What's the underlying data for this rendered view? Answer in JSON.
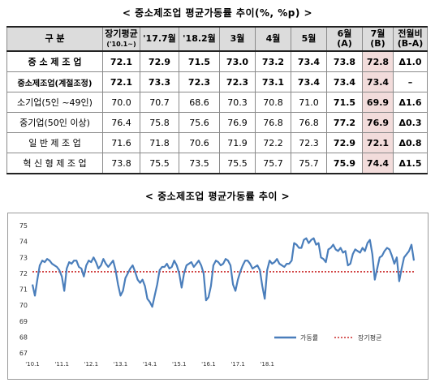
{
  "table_title": "< 중소제조업 평균가동률 추이(%, %p) >",
  "chart_title": "< 중소제조업 평균가동률 추이 >",
  "table": {
    "headers": [
      "구 분",
      "장기평균 ('10.1~)",
      "'17.7월",
      "'18.2월",
      "3월",
      "4월",
      "5월",
      "6월 (A)",
      "7월 (B)",
      "전월비 (B-A)"
    ],
    "header_lines": [
      [
        "구 분"
      ],
      [
        "장기평균",
        "('10.1~)"
      ],
      [
        "'17.7월"
      ],
      [
        "'18.2월"
      ],
      [
        "3월"
      ],
      [
        "4월"
      ],
      [
        "5월"
      ],
      [
        "6월",
        "(A)"
      ],
      [
        "7월",
        "(B)"
      ],
      [
        "전월비",
        "(B-A)"
      ]
    ],
    "rows": [
      {
        "label": "중 소 제 조 업",
        "values": [
          "72.1",
          "72.9",
          "71.5",
          "73.0",
          "73.2",
          "73.4",
          "73.8",
          "72.8",
          "Δ1.0"
        ]
      },
      {
        "label": "중소제조업(계절조정)",
        "values": [
          "72.1",
          "73.3",
          "72.3",
          "72.3",
          "73.1",
          "73.4",
          "73.4",
          "73.4",
          "–"
        ]
      },
      {
        "label": "소기업(5인 ~49인)",
        "values": [
          "70.0",
          "70.7",
          "68.6",
          "70.3",
          "70.8",
          "71.0",
          "71.5",
          "69.9",
          "Δ1.6"
        ]
      },
      {
        "label": "중기업(50인 이상)",
        "values": [
          "76.4",
          "75.8",
          "75.6",
          "76.9",
          "76.8",
          "76.8",
          "77.2",
          "76.9",
          "Δ0.3"
        ]
      },
      {
        "label": "일 반 제 조 업",
        "values": [
          "71.6",
          "71.8",
          "70.6",
          "71.9",
          "72.2",
          "72.3",
          "72.9",
          "72.1",
          "Δ0.8"
        ]
      },
      {
        "label": "혁 신 형 제 조 업",
        "values": [
          "73.8",
          "75.5",
          "73.5",
          "75.5",
          "75.7",
          "75.7",
          "75.9",
          "74.4",
          "Δ1.5"
        ]
      }
    ]
  },
  "chart_data": {
    "type": "line",
    "x_tick_labels": [
      "'10.1",
      "'11.1",
      "'12.1",
      "'13.1",
      "'14.1",
      "'15.1",
      "'16.1",
      "'17.1",
      "'18.1"
    ],
    "ylim": [
      67,
      75
    ],
    "y_ticks": [
      67,
      68,
      69,
      70,
      71,
      72,
      73,
      74,
      75
    ],
    "series": [
      {
        "name": "가동률",
        "color": "#4a7ebb",
        "values": [
          71.3,
          70.6,
          71.6,
          72.5,
          72.8,
          72.7,
          72.9,
          72.8,
          72.6,
          72.5,
          72.4,
          72.2,
          71.8,
          70.9,
          72.3,
          72.7,
          72.6,
          72.8,
          72.8,
          72.4,
          72.3,
          71.8,
          72.5,
          72.8,
          72.7,
          73.0,
          72.7,
          72.3,
          72.5,
          72.9,
          72.6,
          72.4,
          72.6,
          72.8,
          72.2,
          71.3,
          70.6,
          70.9,
          71.7,
          72.0,
          72.3,
          72.5,
          72.1,
          71.6,
          71.4,
          71.6,
          71.2,
          70.4,
          70.2,
          69.9,
          70.6,
          71.3,
          72.2,
          72.4,
          72.4,
          72.6,
          72.3,
          72.4,
          72.8,
          72.5,
          72.0,
          71.1,
          72.0,
          72.5,
          72.6,
          72.7,
          72.4,
          72.6,
          72.8,
          72.5,
          72.0,
          70.3,
          70.5,
          71.2,
          72.5,
          72.8,
          72.7,
          72.5,
          72.6,
          72.9,
          72.8,
          72.5,
          71.3,
          70.9,
          71.6,
          72.1,
          72.5,
          72.8,
          72.8,
          72.6,
          72.3,
          72.4,
          72.5,
          72.2,
          71.2,
          70.4,
          72.2,
          72.8,
          72.6,
          72.7,
          72.9,
          72.6,
          72.5,
          72.4,
          72.6,
          72.6,
          72.8,
          73.9,
          73.8,
          73.6,
          73.6,
          74.1,
          74.2,
          73.9,
          74.1,
          74.2,
          73.8,
          73.9,
          73.0,
          72.9,
          72.7,
          73.5,
          73.6,
          73.8,
          73.5,
          73.4,
          73.6,
          73.3,
          73.4,
          72.5,
          72.6,
          73.2,
          73.5,
          73.4,
          73.3,
          73.6,
          73.4,
          73.9,
          74.1,
          73.2,
          71.6,
          72.3,
          73.0,
          73.1,
          73.4,
          73.6,
          73.5,
          73.1,
          72.6,
          73.0,
          71.5,
          72.3,
          73.0,
          73.2,
          73.4,
          73.8,
          72.8
        ]
      },
      {
        "name": "장기평균",
        "color": "#c00000",
        "values": [
          72.1
        ]
      }
    ],
    "legend_position": "bottom-right",
    "grid": false
  }
}
